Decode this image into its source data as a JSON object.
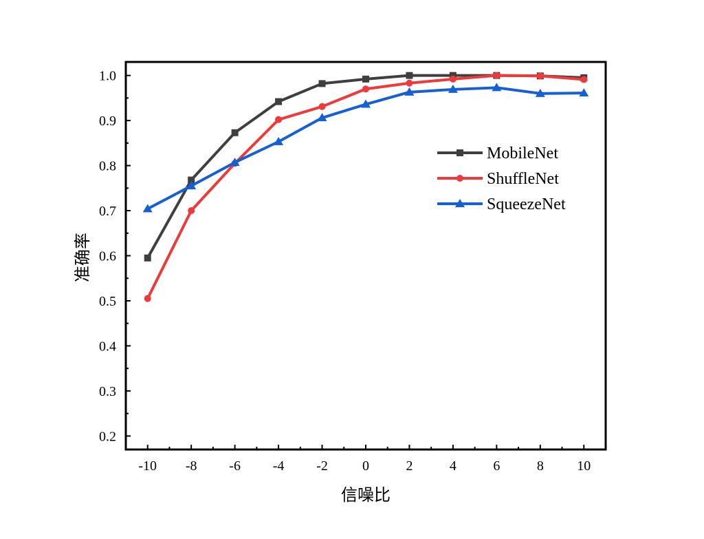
{
  "chart_data": {
    "type": "line",
    "title": "",
    "xlabel": "信噪比",
    "ylabel": "准确率",
    "x": [
      -10,
      -8,
      -6,
      -4,
      -2,
      0,
      2,
      4,
      6,
      8,
      10
    ],
    "x_tick_labels": [
      "-10",
      "-8",
      "-6",
      "-4",
      "-2",
      "0",
      "2",
      "4",
      "6",
      "8",
      "10"
    ],
    "y_tick_labels": [
      "0.2",
      "0.3",
      "0.4",
      "0.5",
      "0.6",
      "0.7",
      "0.8",
      "0.9",
      "1.0"
    ],
    "y_ticks": [
      0.2,
      0.3,
      0.4,
      0.5,
      0.6,
      0.7,
      0.8,
      0.9,
      1.0
    ],
    "xlim": [
      -11,
      11
    ],
    "ylim": [
      0.17,
      1.03
    ],
    "grid": false,
    "legend_position": "right",
    "series": [
      {
        "name": "MobileNet",
        "color": "#3f3f3f",
        "marker": "square",
        "values": [
          0.595,
          0.768,
          0.873,
          0.942,
          0.982,
          0.992,
          1.0,
          1.0,
          1.0,
          0.999,
          0.995
        ]
      },
      {
        "name": "ShuffleNet",
        "color": "#ee3a3a",
        "marker": "circle",
        "values": [
          0.505,
          0.7,
          0.805,
          0.902,
          0.931,
          0.97,
          0.983,
          0.992,
          1.0,
          0.999,
          0.991
        ]
      },
      {
        "name": "SqueezeNet",
        "color": "#1560d4",
        "marker": "triangle",
        "values": [
          0.704,
          0.755,
          0.807,
          0.853,
          0.906,
          0.936,
          0.963,
          0.969,
          0.973,
          0.96,
          0.961
        ]
      }
    ]
  }
}
